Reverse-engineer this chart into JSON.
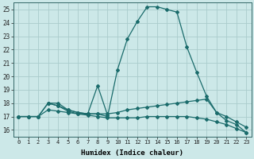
{
  "xlabel": "Humidex (Indice chaleur)",
  "ylabel": "",
  "bg_color": "#cce8e8",
  "grid_color": "#aacccc",
  "line_color": "#1a6b6b",
  "xlim": [
    -0.5,
    23.5
  ],
  "ylim": [
    15.5,
    25.5
  ],
  "yticks": [
    16,
    17,
    18,
    19,
    20,
    21,
    22,
    23,
    24,
    25
  ],
  "xticks": [
    0,
    1,
    2,
    3,
    4,
    5,
    6,
    7,
    8,
    9,
    10,
    11,
    12,
    13,
    14,
    15,
    16,
    17,
    18,
    19,
    20,
    21,
    22,
    23
  ],
  "lines": [
    {
      "x": [
        0,
        1,
        2,
        3,
        4,
        5,
        6,
        7,
        8,
        9,
        10,
        11,
        12,
        13,
        14,
        15,
        16,
        17,
        18,
        19,
        20,
        21,
        22,
        23
      ],
      "y": [
        17,
        17,
        17,
        18,
        18,
        17.5,
        17.3,
        17.2,
        17.2,
        17.0,
        20.5,
        22.8,
        24.1,
        25.2,
        25.2,
        25.0,
        24.8,
        22.2,
        20.3,
        18.5,
        17.3,
        16.7,
        16.4,
        15.8
      ]
    },
    {
      "x": [
        3,
        4,
        5,
        6,
        7,
        8,
        9
      ],
      "y": [
        18,
        17.8,
        17.5,
        17.3,
        17.2,
        19.3,
        17.1
      ]
    },
    {
      "x": [
        0,
        1,
        2,
        3,
        4,
        5,
        6,
        7,
        8,
        9,
        10,
        11,
        12,
        13,
        14,
        15,
        16,
        17,
        18,
        19,
        20,
        21,
        22,
        23
      ],
      "y": [
        17,
        17,
        17,
        18,
        17.8,
        17.4,
        17.2,
        17.2,
        17.2,
        17.2,
        17.3,
        17.5,
        17.6,
        17.7,
        17.8,
        17.9,
        18.0,
        18.1,
        18.2,
        18.3,
        17.3,
        17.0,
        16.6,
        16.2
      ]
    },
    {
      "x": [
        0,
        1,
        2,
        3,
        4,
        5,
        6,
        7,
        8,
        9,
        10,
        11,
        12,
        13,
        14,
        15,
        16,
        17,
        18,
        19,
        20,
        21,
        22,
        23
      ],
      "y": [
        17,
        17,
        17,
        17.5,
        17.4,
        17.3,
        17.2,
        17.1,
        17.0,
        16.9,
        16.9,
        16.9,
        16.9,
        17.0,
        17.0,
        17.0,
        17.0,
        17.0,
        16.9,
        16.8,
        16.6,
        16.4,
        16.1,
        15.8
      ]
    }
  ]
}
